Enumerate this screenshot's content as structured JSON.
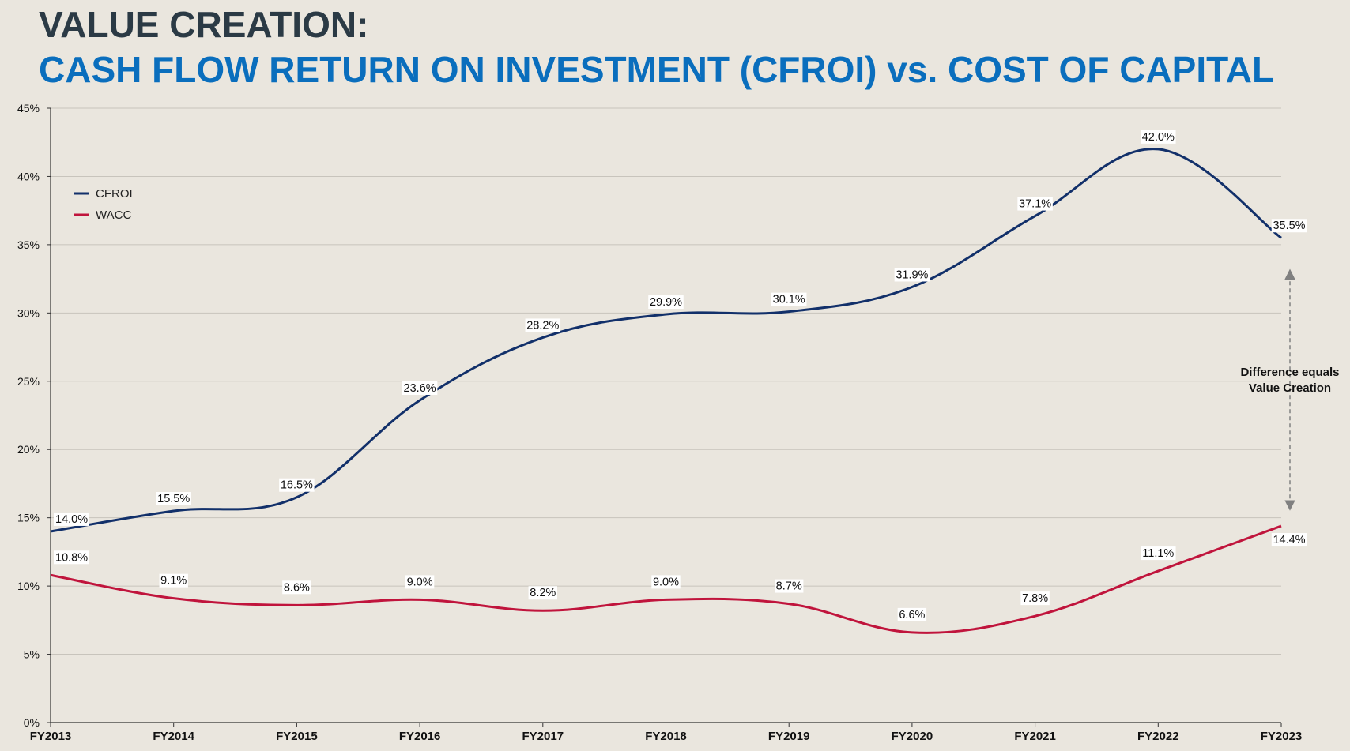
{
  "header": {
    "title": "VALUE CREATION:",
    "subtitle": "CASH FLOW RETURN ON INVESTMENT (CFROI) vs. COST OF CAPITAL"
  },
  "chart_data": {
    "type": "line",
    "x": [
      "FY2013",
      "FY2014",
      "FY2015",
      "FY2016",
      "FY2017",
      "FY2018",
      "FY2019",
      "FY2020",
      "FY2021",
      "FY2022",
      "FY2023"
    ],
    "series": [
      {
        "name": "CFROI",
        "color": "#12306a",
        "values": [
          14.0,
          15.5,
          16.5,
          23.6,
          28.2,
          29.9,
          30.1,
          31.9,
          37.1,
          42.0,
          35.5
        ],
        "labels": [
          "14.0%",
          "15.5%",
          "16.5%",
          "23.6%",
          "28.2%",
          "29.9%",
          "30.1%",
          "31.9%",
          "37.1%",
          "42.0%",
          "35.5%"
        ]
      },
      {
        "name": "WACC",
        "color": "#c0143c",
        "values": [
          10.8,
          9.1,
          8.6,
          9.0,
          8.2,
          9.0,
          8.7,
          6.6,
          7.8,
          11.1,
          14.4
        ],
        "labels": [
          "10.8%",
          "9.1%",
          "8.6%",
          "9.0%",
          "8.2%",
          "9.0%",
          "8.7%",
          "6.6%",
          "7.8%",
          "11.1%",
          "14.4%"
        ]
      }
    ],
    "yticks": [
      "0%",
      "5%",
      "10%",
      "15%",
      "20%",
      "25%",
      "30%",
      "35%",
      "40%",
      "45%"
    ],
    "ylim": [
      0,
      45
    ],
    "grid": true,
    "legend_position": "top-left",
    "annotation": {
      "lines": [
        "Difference equals",
        "Value Creation"
      ],
      "between": [
        "CFROI",
        "WACC"
      ],
      "at": "FY2023"
    },
    "colors": {
      "grid": "#c8c4bc",
      "axis": "#333333",
      "annotation_arrow": "#808080"
    }
  }
}
